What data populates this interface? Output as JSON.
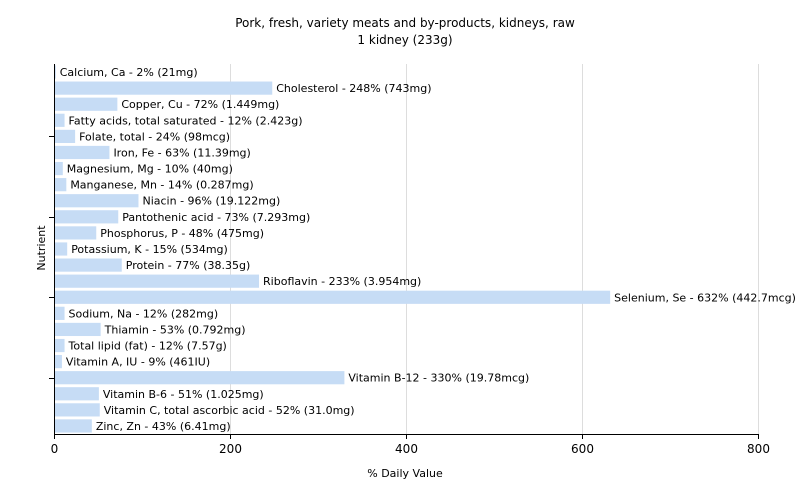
{
  "chart_data": {
    "type": "bar",
    "orientation": "horizontal",
    "title": "Pork, fresh, variety meats and by-products, kidneys, raw",
    "subtitle": "1 kidney (233g)",
    "xlabel": "% Daily Value",
    "ylabel": "Nutrient",
    "xlim": [
      0,
      800
    ],
    "xticks": [
      0,
      200,
      400,
      600,
      800
    ],
    "grid": true,
    "bar_color": "#c6dcf5",
    "categories": [
      "Calcium, Ca - 2% (21mg)",
      "Cholesterol - 248% (743mg)",
      "Copper, Cu - 72% (1.449mg)",
      "Fatty acids, total saturated - 12% (2.423g)",
      "Folate, total - 24% (98mcg)",
      "Iron, Fe - 63% (11.39mg)",
      "Magnesium, Mg - 10% (40mg)",
      "Manganese, Mn - 14% (0.287mg)",
      "Niacin - 96% (19.122mg)",
      "Pantothenic acid - 73% (7.293mg)",
      "Phosphorus, P - 48% (475mg)",
      "Potassium, K - 15% (534mg)",
      "Protein - 77% (38.35g)",
      "Riboflavin - 233% (3.954mg)",
      "Selenium, Se - 632% (442.7mcg)",
      "Sodium, Na - 12% (282mg)",
      "Thiamin - 53% (0.792mg)",
      "Total lipid (fat) - 12% (7.57g)",
      "Vitamin A, IU - 9% (461IU)",
      "Vitamin B-12 - 330% (19.78mcg)",
      "Vitamin B-6 - 51% (1.025mg)",
      "Vitamin C, total ascorbic acid - 52% (31.0mg)",
      "Zinc, Zn - 43% (6.41mg)"
    ],
    "values": [
      2,
      248,
      72,
      12,
      24,
      63,
      10,
      14,
      96,
      73,
      48,
      15,
      77,
      233,
      632,
      12,
      53,
      12,
      9,
      330,
      51,
      52,
      43
    ]
  }
}
